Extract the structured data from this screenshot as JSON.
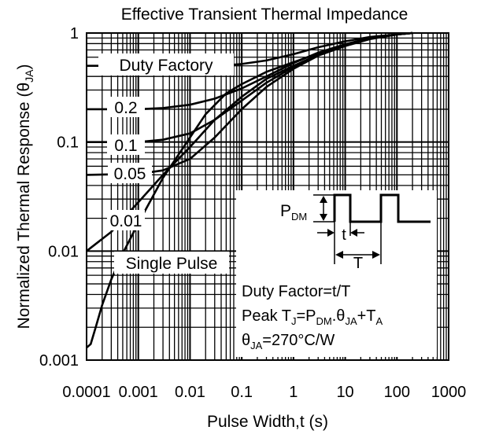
{
  "chart_data": {
    "type": "line",
    "title": "Effective Transient Thermal Impedance",
    "xlabel": "Pulse Width,t (s)",
    "ylabel_main": "Normalized Thermal Response (θ",
    "ylabel_sub": "JA",
    "ylabel_close": ")",
    "x_scale": "log",
    "y_scale": "log",
    "xlim": [
      0.0001,
      1000
    ],
    "ylim": [
      0.001,
      1
    ],
    "grid": true,
    "x_ticks": [
      {
        "value": 0.0001,
        "label": "0.0001"
      },
      {
        "value": 0.001,
        "label": "0.001"
      },
      {
        "value": 0.01,
        "label": "0.01"
      },
      {
        "value": 0.1,
        "label": "0.1"
      },
      {
        "value": 1,
        "label": "1"
      },
      {
        "value": 10,
        "label": "10"
      },
      {
        "value": 100,
        "label": "100"
      },
      {
        "value": 1000,
        "label": "1000"
      }
    ],
    "y_ticks": [
      {
        "value": 0.001,
        "label": "0.001"
      },
      {
        "value": 0.01,
        "label": "0.01"
      },
      {
        "value": 0.1,
        "label": "0.1"
      },
      {
        "value": 1,
        "label": "1"
      }
    ],
    "series": [
      {
        "name": "Duty Factory",
        "x": [
          0.0001,
          0.001,
          0.01,
          0.05,
          0.1,
          0.3,
          1,
          3,
          10,
          30,
          100,
          200
        ],
        "y": [
          0.5,
          0.5,
          0.5,
          0.505,
          0.52,
          0.56,
          0.64,
          0.74,
          0.84,
          0.92,
          0.97,
          1.0
        ]
      },
      {
        "name": "0.2",
        "x": [
          0.0001,
          0.001,
          0.003,
          0.01,
          0.03,
          0.1,
          0.3,
          1,
          3,
          10,
          30,
          100,
          200
        ],
        "y": [
          0.2,
          0.2,
          0.205,
          0.22,
          0.25,
          0.31,
          0.4,
          0.53,
          0.66,
          0.79,
          0.9,
          0.97,
          1.0
        ]
      },
      {
        "name": "0.1",
        "x": [
          0.0001,
          0.001,
          0.003,
          0.01,
          0.03,
          0.1,
          0.3,
          1,
          3,
          10,
          30,
          100,
          200
        ],
        "y": [
          0.1,
          0.1,
          0.105,
          0.12,
          0.16,
          0.24,
          0.35,
          0.49,
          0.63,
          0.77,
          0.89,
          0.97,
          1.0
        ]
      },
      {
        "name": "0.05",
        "x": [
          0.0001,
          0.001,
          0.003,
          0.01,
          0.03,
          0.1,
          0.3,
          1,
          3,
          10,
          30,
          100,
          200
        ],
        "y": [
          0.05,
          0.051,
          0.055,
          0.07,
          0.11,
          0.2,
          0.32,
          0.47,
          0.62,
          0.76,
          0.88,
          0.97,
          1.0
        ]
      },
      {
        "name": "0.01",
        "x": [
          0.0001,
          0.0003,
          0.001,
          0.003,
          0.01,
          0.03,
          0.1,
          0.3,
          1,
          3,
          10,
          30,
          100,
          200
        ],
        "y": [
          0.01,
          0.015,
          0.028,
          0.05,
          0.09,
          0.16,
          0.26,
          0.38,
          0.5,
          0.63,
          0.77,
          0.89,
          0.97,
          1.0
        ]
      },
      {
        "name": "Single Pulse",
        "x": [
          0.0001,
          0.00012,
          0.00015,
          0.0002,
          0.0003,
          0.0005,
          0.001,
          0.002,
          0.003,
          0.01,
          0.02,
          0.05,
          0.1,
          0.3,
          1,
          3,
          10,
          30,
          100,
          200
        ],
        "y": [
          0.0013,
          0.0014,
          0.002,
          0.0032,
          0.0055,
          0.0095,
          0.018,
          0.033,
          0.047,
          0.11,
          0.18,
          0.28,
          0.34,
          0.44,
          0.54,
          0.65,
          0.78,
          0.9,
          0.97,
          1.0
        ]
      }
    ],
    "annotations": [
      {
        "text": "Duty Factory"
      },
      {
        "text": "0.2"
      },
      {
        "text": "0.1"
      },
      {
        "text": "0.05"
      },
      {
        "text": "0.01"
      },
      {
        "text": "Single Pulse"
      }
    ],
    "inset": {
      "pdm_main": "P",
      "pdm_sub": "DM",
      "t_label": "t",
      "T_label": "T",
      "duty_factor": "Duty Factor=t/T",
      "peak_text": [
        {
          "t": "Peak T",
          "sub": false
        },
        {
          "t": "J",
          "sub": true
        },
        {
          "t": "=P",
          "sub": false
        },
        {
          "t": "DM",
          "sub": true
        },
        {
          "t": ".θ",
          "sub": false
        },
        {
          "t": "JA",
          "sub": true
        },
        {
          "t": "+T",
          "sub": false
        },
        {
          "t": "A",
          "sub": true
        }
      ],
      "theta_text": [
        {
          "t": "θ",
          "sub": false
        },
        {
          "t": "JA",
          "sub": true
        },
        {
          "t": "=270°C/W",
          "sub": false
        }
      ]
    }
  }
}
